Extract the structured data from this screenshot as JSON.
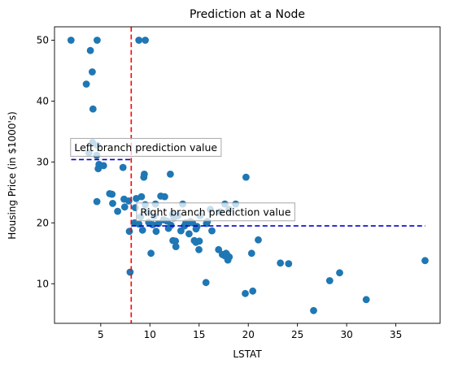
{
  "chart_data": {
    "type": "scatter",
    "title": "Prediction at a Node",
    "xlabel": "LSTAT",
    "ylabel": "Housing Price (in $1000's)",
    "xlim": [
      0.3,
      39.5
    ],
    "ylim": [
      3.5,
      52.2
    ],
    "xticks": [
      5,
      10,
      15,
      20,
      25,
      30,
      35
    ],
    "yticks": [
      10,
      20,
      30,
      40,
      50
    ],
    "grid": false,
    "point_color": "#1f77b4",
    "points": [
      [
        1.98,
        50.0
      ],
      [
        4.63,
        50.0
      ],
      [
        8.88,
        50.0
      ],
      [
        9.53,
        50.0
      ],
      [
        3.95,
        48.3
      ],
      [
        4.14,
        44.8
      ],
      [
        3.53,
        42.8
      ],
      [
        4.21,
        38.7
      ],
      [
        4.16,
        33.2
      ],
      [
        4.67,
        32.7
      ],
      [
        4.59,
        31.1
      ],
      [
        3.81,
        31.5
      ],
      [
        5.29,
        29.4
      ],
      [
        4.82,
        29.6
      ],
      [
        4.74,
        28.9
      ],
      [
        7.26,
        29.1
      ],
      [
        4.61,
        23.5
      ],
      [
        5.91,
        24.8
      ],
      [
        6.15,
        24.7
      ],
      [
        6.21,
        23.2
      ],
      [
        6.72,
        21.9
      ],
      [
        7.44,
        22.6
      ],
      [
        7.37,
        23.9
      ],
      [
        7.85,
        23.6
      ],
      [
        7.91,
        18.6
      ],
      [
        7.98,
        11.9
      ],
      [
        8.44,
        20.0
      ],
      [
        8.51,
        22.5
      ],
      [
        8.61,
        24.0
      ],
      [
        8.88,
        19.8
      ],
      [
        9.06,
        21.0
      ],
      [
        9.14,
        24.3
      ],
      [
        9.25,
        18.8
      ],
      [
        9.38,
        27.5
      ],
      [
        9.43,
        28.0
      ],
      [
        9.52,
        23.0
      ],
      [
        9.76,
        21.8
      ],
      [
        9.88,
        20.1
      ],
      [
        10.11,
        15.0
      ],
      [
        10.27,
        19.7
      ],
      [
        10.4,
        21.1
      ],
      [
        10.56,
        23.1
      ],
      [
        10.63,
        18.6
      ],
      [
        10.87,
        19.9
      ],
      [
        11.1,
        24.4
      ],
      [
        11.38,
        20.5
      ],
      [
        11.5,
        24.3
      ],
      [
        11.74,
        20.3
      ],
      [
        11.89,
        19.1
      ],
      [
        12.08,
        28.0
      ],
      [
        12.14,
        19.6
      ],
      [
        12.3,
        21.4
      ],
      [
        12.34,
        17.1
      ],
      [
        12.43,
        20.8
      ],
      [
        12.6,
        17.0
      ],
      [
        12.64,
        16.1
      ],
      [
        12.86,
        21.2
      ],
      [
        13.15,
        18.7
      ],
      [
        13.33,
        23.1
      ],
      [
        13.51,
        19.5
      ],
      [
        13.65,
        20.0
      ],
      [
        13.98,
        18.2
      ],
      [
        14.1,
        20.2
      ],
      [
        14.33,
        20.0
      ],
      [
        14.52,
        17.1
      ],
      [
        14.67,
        16.8
      ],
      [
        14.69,
        19.0
      ],
      [
        14.79,
        19.4
      ],
      [
        14.98,
        15.6
      ],
      [
        15.02,
        17.0
      ],
      [
        15.1,
        21.2
      ],
      [
        15.7,
        10.2
      ],
      [
        15.76,
        19.9
      ],
      [
        15.84,
        20.2
      ],
      [
        16.14,
        22.2
      ],
      [
        16.3,
        18.7
      ],
      [
        16.98,
        15.6
      ],
      [
        17.11,
        21.8
      ],
      [
        17.36,
        14.8
      ],
      [
        17.6,
        14.6
      ],
      [
        17.73,
        15.0
      ],
      [
        17.79,
        14.9
      ],
      [
        18.06,
        14.4
      ],
      [
        18.05,
        22.2
      ],
      [
        17.92,
        13.9
      ],
      [
        17.62,
        23.1
      ],
      [
        18.72,
        23.1
      ],
      [
        19.77,
        27.5
      ],
      [
        19.69,
        8.4
      ],
      [
        20.34,
        15.0
      ],
      [
        20.45,
        8.8
      ],
      [
        21.02,
        17.2
      ],
      [
        23.27,
        13.4
      ],
      [
        24.1,
        13.3
      ],
      [
        26.64,
        5.6
      ],
      [
        28.28,
        10.5
      ],
      [
        29.29,
        11.8
      ],
      [
        31.99,
        7.4
      ],
      [
        37.97,
        13.8
      ]
    ],
    "split_line": {
      "x": 8.1,
      "color": "#ff0000"
    },
    "left_prediction": {
      "x_start": 2.0,
      "x_end": 8.1,
      "y": 30.4,
      "color": "#0000cc"
    },
    "right_prediction": {
      "x_start": 8.1,
      "x_end": 38.0,
      "y": 19.5,
      "color": "#0000cc"
    },
    "annotations": [
      {
        "text": "Left branch prediction value",
        "x": 1.9,
        "y": 32.4
      },
      {
        "text": "Right branch prediction value",
        "x": 8.6,
        "y": 21.8
      }
    ]
  }
}
